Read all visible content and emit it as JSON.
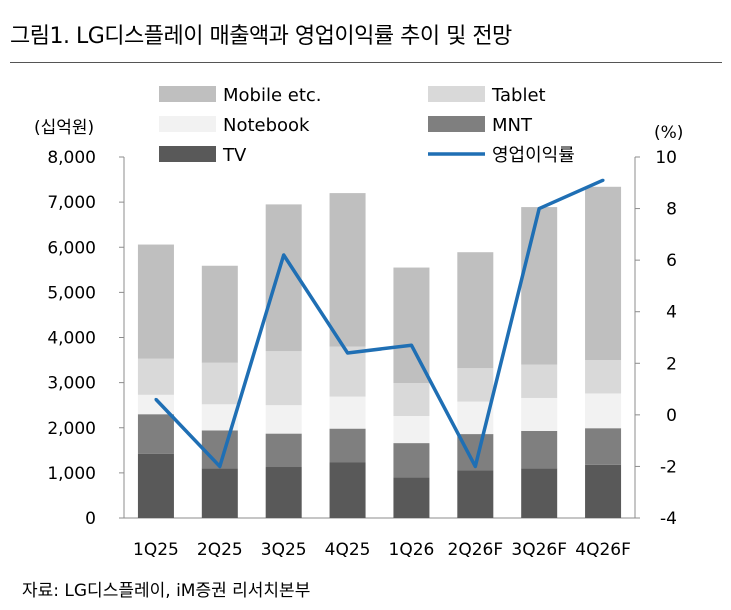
{
  "title": "그림1. LG디스플레이 매출액과 영업이익률 추이 및 전망",
  "source": "자료: LG디스플레이, iM증권 리서치본부",
  "chart_data": {
    "type": "bar",
    "stacked": true,
    "categories": [
      "1Q25",
      "2Q25",
      "3Q25",
      "4Q25",
      "1Q26",
      "2Q26F",
      "3Q26F",
      "4Q26F"
    ],
    "series": [
      {
        "name": "TV",
        "values": [
          1420,
          1100,
          1130,
          1230,
          900,
          1060,
          1100,
          1180
        ],
        "color": "#595959"
      },
      {
        "name": "MNT",
        "values": [
          880,
          840,
          740,
          750,
          760,
          800,
          830,
          810
        ],
        "color": "#7f7f7f"
      },
      {
        "name": "Notebook",
        "values": [
          430,
          580,
          630,
          710,
          600,
          720,
          730,
          770
        ],
        "color": "#f2f2f2"
      },
      {
        "name": "Tablet",
        "values": [
          800,
          920,
          1200,
          1110,
          730,
          740,
          740,
          740
        ],
        "color": "#d9d9d9"
      },
      {
        "name": "Mobile etc.",
        "values": [
          2530,
          2150,
          3250,
          3400,
          2560,
          2570,
          3490,
          3840
        ],
        "color": "#bfbfbf"
      }
    ],
    "line_series": {
      "name": "영업이익률",
      "values": [
        0.6,
        -2.0,
        6.2,
        2.4,
        2.7,
        -2.0,
        8.0,
        9.1
      ],
      "color": "#1f6fb4",
      "axis": "right"
    },
    "left_axis": {
      "unit": "(십억원)",
      "min": 0,
      "max": 8000,
      "ticks": [
        "0",
        "1,000",
        "2,000",
        "3,000",
        "4,000",
        "5,000",
        "6,000",
        "7,000",
        "8,000"
      ]
    },
    "right_axis": {
      "unit": "(%)",
      "min": -4,
      "max": 10,
      "ticks": [
        "-4",
        "-2",
        "0",
        "2",
        "4",
        "6",
        "8",
        "10"
      ]
    },
    "legend": [
      {
        "label": "Mobile etc.",
        "color": "#bfbfbf",
        "kind": "box"
      },
      {
        "label": "Tablet",
        "color": "#d9d9d9",
        "kind": "box"
      },
      {
        "label": "Notebook",
        "color": "#f2f2f2",
        "kind": "box"
      },
      {
        "label": "MNT",
        "color": "#7f7f7f",
        "kind": "box"
      },
      {
        "label": "TV",
        "color": "#595959",
        "kind": "box"
      },
      {
        "label": "영업이익률",
        "color": "#1f6fb4",
        "kind": "line"
      }
    ],
    "legend_position": "top",
    "grid": false
  }
}
